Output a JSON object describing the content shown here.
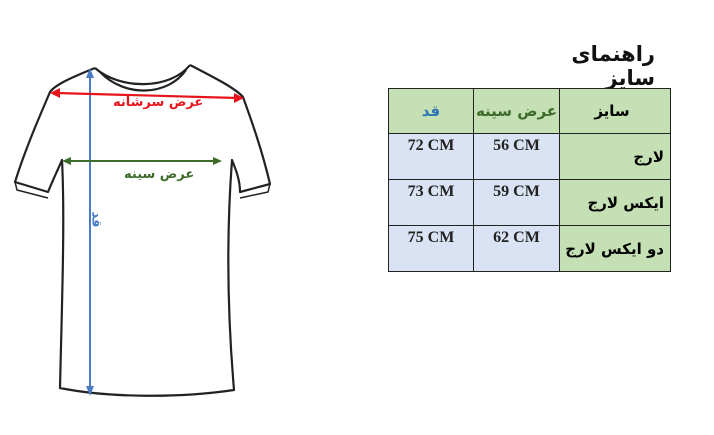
{
  "title": "راهنمای سایز",
  "diagram": {
    "shoulder_label": "عرض سرشانه",
    "chest_label": "عرض سینه",
    "length_label": "قد"
  },
  "table": {
    "headers": {
      "size": "سایز",
      "chest": "عرض سینه",
      "length": "قد"
    },
    "rows": [
      {
        "size": "لارج",
        "chest": "56 CM",
        "length": "72 CM"
      },
      {
        "size": "ایکس لارج",
        "chest": "59 CM",
        "length": "73 CM"
      },
      {
        "size": "دو ایکس لارج",
        "chest": "62 CM",
        "length": "75 CM"
      }
    ]
  },
  "colors": {
    "shoulder": "#e8141c",
    "chest": "#3d6b2a",
    "length": "#4a7bc4",
    "header_green": "#c5e0b4",
    "cell_blue": "#dae3f3"
  }
}
